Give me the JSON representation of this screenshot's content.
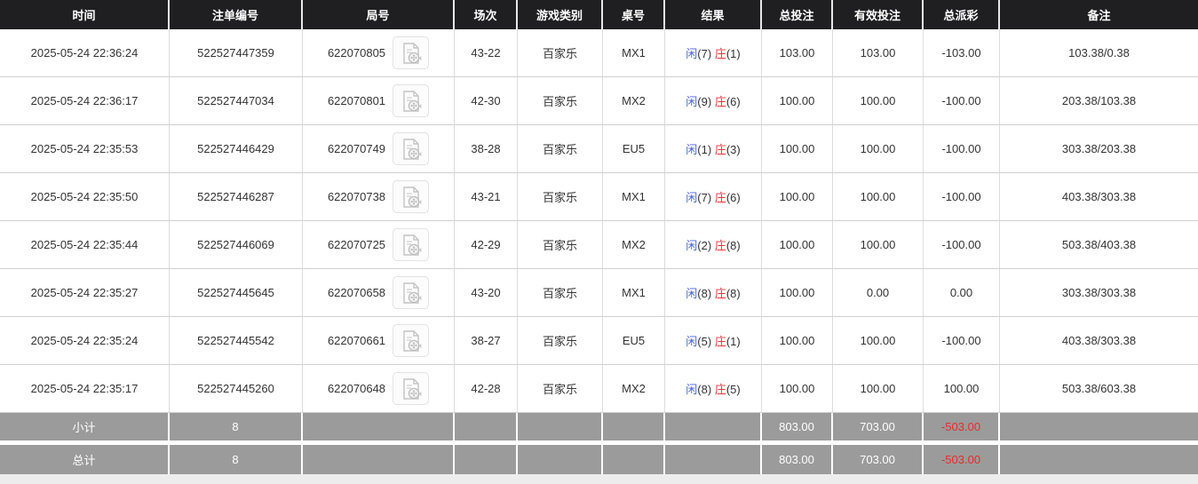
{
  "colors": {
    "header_bg": "#1f1f21",
    "accent_blue": "#3e6bdb",
    "accent_red": "#e83535",
    "summary_bg": "#9b9b9b"
  },
  "table": {
    "columns": [
      {
        "key": "time",
        "label": "时间"
      },
      {
        "key": "bet_id",
        "label": "注单编号"
      },
      {
        "key": "round_id",
        "label": "局号"
      },
      {
        "key": "session",
        "label": "场次"
      },
      {
        "key": "game_type",
        "label": "游戏类别"
      },
      {
        "key": "table_no",
        "label": "桌号"
      },
      {
        "key": "result",
        "label": "结果"
      },
      {
        "key": "total_bet",
        "label": "总投注"
      },
      {
        "key": "valid_bet",
        "label": "有效投注"
      },
      {
        "key": "total_payout",
        "label": "总派彩"
      },
      {
        "key": "remark",
        "label": "备注"
      }
    ],
    "video_icon": "film-document-icon",
    "rows": [
      {
        "time": "2025-05-24 22:36:24",
        "bet_id": "522527447359",
        "round_id": "622070805",
        "session": "43-22",
        "game_type": "百家乐",
        "table_no": "MX1",
        "player_label": "闲",
        "player_val": "(7)",
        "banker_label": "庄",
        "banker_val": "(1)",
        "total_bet": "103.00",
        "valid_bet": "103.00",
        "total_payout": "-103.00",
        "remark": "103.38/0.38"
      },
      {
        "time": "2025-05-24 22:36:17",
        "bet_id": "522527447034",
        "round_id": "622070801",
        "session": "42-30",
        "game_type": "百家乐",
        "table_no": "MX2",
        "player_label": "闲",
        "player_val": "(9)",
        "banker_label": "庄",
        "banker_val": "(6)",
        "total_bet": "100.00",
        "valid_bet": "100.00",
        "total_payout": "-100.00",
        "remark": "203.38/103.38"
      },
      {
        "time": "2025-05-24 22:35:53",
        "bet_id": "522527446429",
        "round_id": "622070749",
        "session": "38-28",
        "game_type": "百家乐",
        "table_no": "EU5",
        "player_label": "闲",
        "player_val": "(1)",
        "banker_label": "庄",
        "banker_val": "(3)",
        "total_bet": "100.00",
        "valid_bet": "100.00",
        "total_payout": "-100.00",
        "remark": "303.38/203.38"
      },
      {
        "time": "2025-05-24 22:35:50",
        "bet_id": "522527446287",
        "round_id": "622070738",
        "session": "43-21",
        "game_type": "百家乐",
        "table_no": "MX1",
        "player_label": "闲",
        "player_val": "(7)",
        "banker_label": "庄",
        "banker_val": "(6)",
        "total_bet": "100.00",
        "valid_bet": "100.00",
        "total_payout": "-100.00",
        "remark": "403.38/303.38"
      },
      {
        "time": "2025-05-24 22:35:44",
        "bet_id": "522527446069",
        "round_id": "622070725",
        "session": "42-29",
        "game_type": "百家乐",
        "table_no": "MX2",
        "player_label": "闲",
        "player_val": "(2)",
        "banker_label": "庄",
        "banker_val": "(8)",
        "total_bet": "100.00",
        "valid_bet": "100.00",
        "total_payout": "-100.00",
        "remark": "503.38/403.38"
      },
      {
        "time": "2025-05-24 22:35:27",
        "bet_id": "522527445645",
        "round_id": "622070658",
        "session": "43-20",
        "game_type": "百家乐",
        "table_no": "MX1",
        "player_label": "闲",
        "player_val": "(8)",
        "banker_label": "庄",
        "banker_val": "(8)",
        "total_bet": "100.00",
        "valid_bet": "0.00",
        "total_payout": "0.00",
        "remark": "303.38/303.38"
      },
      {
        "time": "2025-05-24 22:35:24",
        "bet_id": "522527445542",
        "round_id": "622070661",
        "session": "38-27",
        "game_type": "百家乐",
        "table_no": "EU5",
        "player_label": "闲",
        "player_val": "(5)",
        "banker_label": "庄",
        "banker_val": "(1)",
        "total_bet": "100.00",
        "valid_bet": "100.00",
        "total_payout": "-100.00",
        "remark": "403.38/303.38"
      },
      {
        "time": "2025-05-24 22:35:17",
        "bet_id": "522527445260",
        "round_id": "622070648",
        "session": "42-28",
        "game_type": "百家乐",
        "table_no": "MX2",
        "player_label": "闲",
        "player_val": "(8)",
        "banker_label": "庄",
        "banker_val": "(5)",
        "total_bet": "100.00",
        "valid_bet": "100.00",
        "total_payout": "100.00",
        "remark": "503.38/603.38"
      }
    ],
    "subtotal": {
      "label": "小计",
      "count": "8",
      "total_bet": "803.00",
      "valid_bet": "703.00",
      "total_payout": "-503.00"
    },
    "total": {
      "label": "总计",
      "count": "8",
      "total_bet": "803.00",
      "valid_bet": "703.00",
      "total_payout": "-503.00"
    }
  }
}
